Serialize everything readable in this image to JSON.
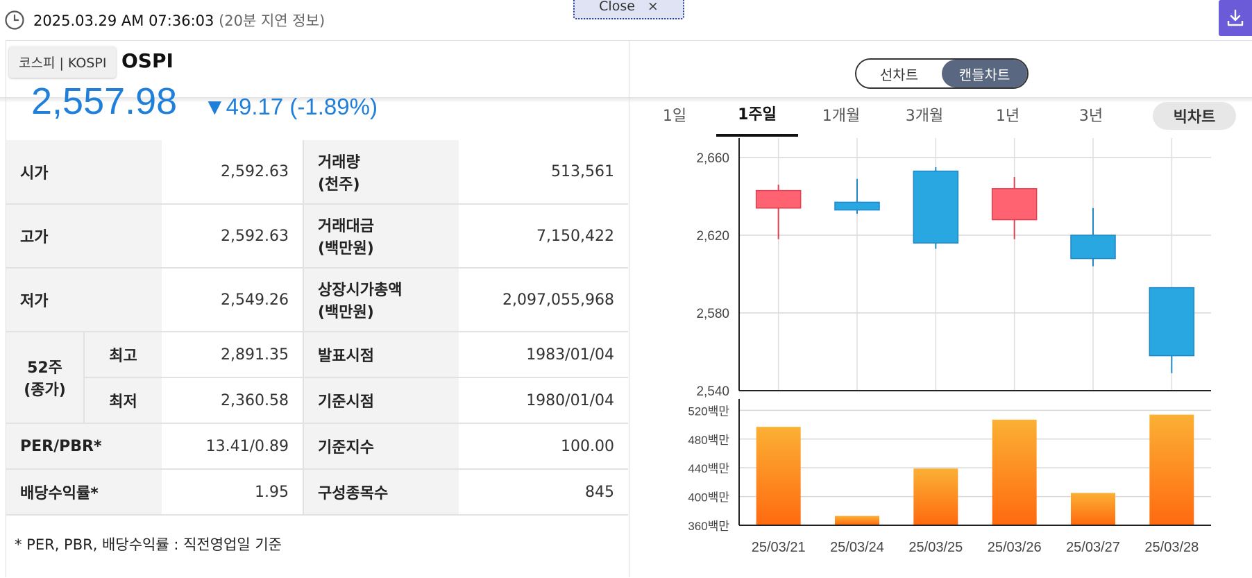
{
  "topbar": {
    "time": "2025.03.29 AM 07:36:03",
    "delay": "(20분 지연 정보)",
    "close_label": "Close",
    "close_x": "×",
    "icons": [
      "clock-icon",
      "download-icon"
    ]
  },
  "index": {
    "name_visible": "OSPI",
    "tooltip": "코스피 | KOSPI",
    "value": "2,557.98",
    "change": "▼49.17 (-1.89%)",
    "change_color": "#1f7fd9"
  },
  "stats": {
    "open_label": "시가",
    "open": "2,592.63",
    "volume_label_1": "거래량",
    "volume_label_2": "(천주)",
    "volume": "513,561",
    "high_label": "고가",
    "high": "2,592.63",
    "amount_label_1": "거래대금",
    "amount_label_2": "(백만원)",
    "amount": "7,150,422",
    "low_label": "저가",
    "low": "2,549.26",
    "mcap_label_1": "상장시가총액",
    "mcap_label_2": "(백만원)",
    "mcap": "2,097,055,968",
    "w52_label_1": "52주",
    "w52_label_2": "(종가)",
    "w52_high_label": "최고",
    "w52_high": "2,891.35",
    "w52_low_label": "최저",
    "w52_low": "2,360.58",
    "announce_label": "발표시점",
    "announce": "1983/01/04",
    "base_date_label": "기준시점",
    "base_date": "1980/01/04",
    "per_pbr_label": "PER/PBR*",
    "per_pbr": "13.41/0.89",
    "base_index_label": "기준지수",
    "base_index": "100.00",
    "dividend_label": "배당수익률*",
    "dividend": "1.95",
    "constituents_label": "구성종목수",
    "constituents": "845"
  },
  "footnote": "* PER, PBR, 배당수익률 : 직전영업일 기준",
  "chart_toggle": {
    "line": "선차트",
    "candle": "캔들차트",
    "selected": "candle"
  },
  "period_tabs": [
    {
      "label": "1일"
    },
    {
      "label": "1주일",
      "active": true
    },
    {
      "label": "1개월"
    },
    {
      "label": "3개월"
    },
    {
      "label": "1년"
    },
    {
      "label": "3년"
    },
    {
      "label": "빅차트"
    }
  ],
  "chart_data": {
    "type": "candlestick",
    "categories": [
      "25/03/21",
      "25/03/24",
      "25/03/25",
      "25/03/26",
      "25/03/27",
      "25/03/28"
    ],
    "price": {
      "ylim": [
        2540,
        2670
      ],
      "yticks": [
        2540,
        2580,
        2620,
        2660
      ],
      "ytick_labels": [
        "2,540",
        "2,580",
        "2,620",
        "2,660"
      ],
      "candles": [
        {
          "open": 2634,
          "close": 2643,
          "high": 2646,
          "low": 2618
        },
        {
          "open": 2637,
          "close": 2633,
          "high": 2649,
          "low": 2631
        },
        {
          "open": 2653,
          "close": 2616,
          "high": 2655,
          "low": 2613
        },
        {
          "open": 2628,
          "close": 2644,
          "high": 2650,
          "low": 2618
        },
        {
          "open": 2620,
          "close": 2608,
          "high": 2634,
          "low": 2604
        },
        {
          "open": 2593,
          "close": 2558,
          "high": 2593,
          "low": 2549
        }
      ],
      "up_color": "#ff6270",
      "down_color": "#29a7e1"
    },
    "volume": {
      "unit": "백만",
      "ylim": [
        360,
        530
      ],
      "yticks": [
        360,
        400,
        440,
        480,
        520
      ],
      "ytick_labels": [
        "360백만",
        "400백만",
        "440백만",
        "480백만",
        "520백만"
      ],
      "values": [
        497,
        373,
        439,
        507,
        405,
        514
      ],
      "color_top": "#fbb034",
      "color_bottom": "#ff6a10"
    },
    "grid": true
  }
}
